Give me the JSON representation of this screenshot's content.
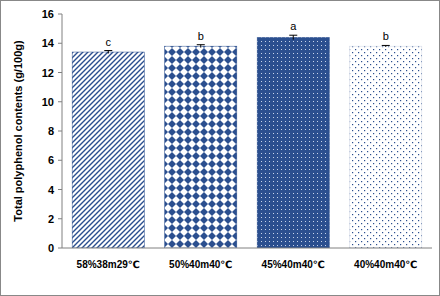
{
  "chart_data": {
    "type": "bar",
    "y_label": "Total polyphenol contents (g/100g)",
    "categories": [
      "58%38m29℃",
      "50%40m40℃",
      "45%40m40℃",
      "40%40m40℃"
    ],
    "values": [
      13.4,
      13.8,
      14.4,
      13.8
    ],
    "errors": [
      0.1,
      0.1,
      0.15,
      0.05
    ],
    "annotations": [
      "c",
      "b",
      "a",
      "b"
    ],
    "colors": [
      "#2b4f8f",
      "#2b4f8f",
      "#2b4f8f",
      "#2b4f8f"
    ],
    "ylim": [
      0,
      16
    ],
    "yticks": [
      0,
      2,
      4,
      6,
      8,
      10,
      12,
      14,
      16
    ],
    "grid": false
  }
}
